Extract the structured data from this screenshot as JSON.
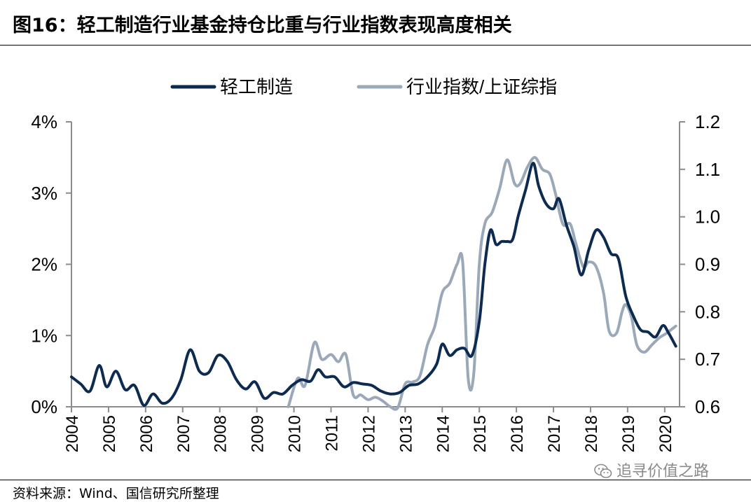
{
  "header": {
    "title": "图16：轻工制造行业基金持仓比重与行业指数表现高度相关"
  },
  "footer": {
    "source": "资料来源：Wind、国信研究所整理",
    "watermark": "追寻价值之路",
    "watermark_icon": "wechat-icon"
  },
  "chart_data": {
    "type": "line",
    "title": "",
    "xlabel": "",
    "ylabel_left": "",
    "ylabel_right": "",
    "x_ticks": [
      "2004",
      "2005",
      "2006",
      "2007",
      "2008",
      "2009",
      "2010",
      "2011",
      "2012",
      "2013",
      "2014",
      "2015",
      "2016",
      "2017",
      "2018",
      "2019",
      "2020"
    ],
    "y_left": {
      "lim": [
        0,
        4
      ],
      "ticks": [
        0,
        1,
        2,
        3,
        4
      ],
      "tick_labels": [
        "0%",
        "1%",
        "2%",
        "3%",
        "4%"
      ]
    },
    "y_right": {
      "lim": [
        0.6,
        1.2
      ],
      "ticks": [
        0.6,
        0.7,
        0.8,
        0.9,
        1.0,
        1.1,
        1.2
      ],
      "tick_labels": [
        "0.6",
        "0.7",
        "0.8",
        "0.9",
        "1.0",
        "1.1",
        "1.2"
      ]
    },
    "legend_position": "top",
    "grid": false,
    "series": [
      {
        "name": "轻工制造",
        "axis": "left",
        "color": "#0d2a50",
        "points": [
          [
            2004.0,
            0.42
          ],
          [
            2004.25,
            0.32
          ],
          [
            2004.5,
            0.22
          ],
          [
            2004.75,
            0.58
          ],
          [
            2004.95,
            0.28
          ],
          [
            2005.2,
            0.5
          ],
          [
            2005.45,
            0.24
          ],
          [
            2005.7,
            0.3
          ],
          [
            2005.95,
            0.02
          ],
          [
            2006.2,
            0.18
          ],
          [
            2006.45,
            0.05
          ],
          [
            2006.7,
            0.12
          ],
          [
            2006.95,
            0.38
          ],
          [
            2007.2,
            0.8
          ],
          [
            2007.45,
            0.5
          ],
          [
            2007.7,
            0.48
          ],
          [
            2007.95,
            0.72
          ],
          [
            2008.2,
            0.64
          ],
          [
            2008.45,
            0.38
          ],
          [
            2008.7,
            0.25
          ],
          [
            2008.95,
            0.35
          ],
          [
            2009.2,
            0.12
          ],
          [
            2009.45,
            0.2
          ],
          [
            2009.7,
            0.18
          ],
          [
            2009.95,
            0.3
          ],
          [
            2010.2,
            0.38
          ],
          [
            2010.45,
            0.36
          ],
          [
            2010.65,
            0.52
          ],
          [
            2010.85,
            0.42
          ],
          [
            2011.1,
            0.42
          ],
          [
            2011.35,
            0.28
          ],
          [
            2011.6,
            0.34
          ],
          [
            2011.85,
            0.32
          ],
          [
            2012.1,
            0.3
          ],
          [
            2012.35,
            0.22
          ],
          [
            2012.6,
            0.18
          ],
          [
            2012.85,
            0.2
          ],
          [
            2013.1,
            0.3
          ],
          [
            2013.35,
            0.32
          ],
          [
            2013.6,
            0.42
          ],
          [
            2013.85,
            0.6
          ],
          [
            2014.0,
            0.88
          ],
          [
            2014.2,
            0.72
          ],
          [
            2014.4,
            0.8
          ],
          [
            2014.6,
            0.82
          ],
          [
            2014.8,
            0.72
          ],
          [
            2015.0,
            1.2
          ],
          [
            2015.15,
            2.0
          ],
          [
            2015.3,
            2.48
          ],
          [
            2015.45,
            2.28
          ],
          [
            2015.6,
            2.32
          ],
          [
            2015.75,
            2.32
          ],
          [
            2015.9,
            2.35
          ],
          [
            2016.05,
            2.68
          ],
          [
            2016.25,
            3.05
          ],
          [
            2016.45,
            3.42
          ],
          [
            2016.6,
            3.1
          ],
          [
            2016.8,
            2.85
          ],
          [
            2017.0,
            2.78
          ],
          [
            2017.15,
            2.92
          ],
          [
            2017.35,
            2.55
          ],
          [
            2017.55,
            2.25
          ],
          [
            2017.75,
            1.85
          ],
          [
            2017.95,
            2.2
          ],
          [
            2018.15,
            2.48
          ],
          [
            2018.35,
            2.38
          ],
          [
            2018.55,
            2.15
          ],
          [
            2018.75,
            2.08
          ],
          [
            2018.95,
            1.55
          ],
          [
            2019.15,
            1.28
          ],
          [
            2019.35,
            1.08
          ],
          [
            2019.55,
            1.05
          ],
          [
            2019.75,
            0.98
          ],
          [
            2019.95,
            1.14
          ],
          [
            2020.1,
            1.04
          ],
          [
            2020.3,
            0.85
          ]
        ]
      },
      {
        "name": "行业指数/上证综指",
        "axis": "right",
        "color": "#9aa8b8",
        "points": [
          [
            2009.85,
            0.6
          ],
          [
            2010.1,
            0.66
          ],
          [
            2010.3,
            0.645
          ],
          [
            2010.55,
            0.735
          ],
          [
            2010.75,
            0.7
          ],
          [
            2011.0,
            0.71
          ],
          [
            2011.2,
            0.695
          ],
          [
            2011.4,
            0.71
          ],
          [
            2011.6,
            0.625
          ],
          [
            2011.8,
            0.625
          ],
          [
            2012.0,
            0.615
          ],
          [
            2012.2,
            0.62
          ],
          [
            2012.4,
            0.612
          ],
          [
            2012.6,
            0.6
          ],
          [
            2012.8,
            0.598
          ],
          [
            2013.0,
            0.648
          ],
          [
            2013.2,
            0.652
          ],
          [
            2013.4,
            0.665
          ],
          [
            2013.6,
            0.73
          ],
          [
            2013.8,
            0.77
          ],
          [
            2014.0,
            0.84
          ],
          [
            2014.2,
            0.86
          ],
          [
            2014.4,
            0.9
          ],
          [
            2014.55,
            0.905
          ],
          [
            2014.7,
            0.66
          ],
          [
            2014.85,
            0.67
          ],
          [
            2015.0,
            0.9
          ],
          [
            2015.15,
            0.985
          ],
          [
            2015.35,
            1.01
          ],
          [
            2015.55,
            1.06
          ],
          [
            2015.75,
            1.12
          ],
          [
            2015.95,
            1.07
          ],
          [
            2016.1,
            1.07
          ],
          [
            2016.3,
            1.105
          ],
          [
            2016.5,
            1.125
          ],
          [
            2016.7,
            1.1
          ],
          [
            2016.9,
            1.09
          ],
          [
            2017.05,
            1.05
          ],
          [
            2017.25,
            0.985
          ],
          [
            2017.45,
            0.985
          ],
          [
            2017.6,
            0.945
          ],
          [
            2017.8,
            0.895
          ],
          [
            2017.95,
            0.905
          ],
          [
            2018.15,
            0.895
          ],
          [
            2018.35,
            0.84
          ],
          [
            2018.5,
            0.76
          ],
          [
            2018.7,
            0.755
          ],
          [
            2018.85,
            0.8
          ],
          [
            2018.95,
            0.815
          ],
          [
            2019.1,
            0.79
          ],
          [
            2019.25,
            0.73
          ],
          [
            2019.45,
            0.715
          ],
          [
            2019.65,
            0.73
          ],
          [
            2019.85,
            0.745
          ],
          [
            2020.05,
            0.755
          ],
          [
            2020.3,
            0.77
          ]
        ]
      }
    ]
  }
}
